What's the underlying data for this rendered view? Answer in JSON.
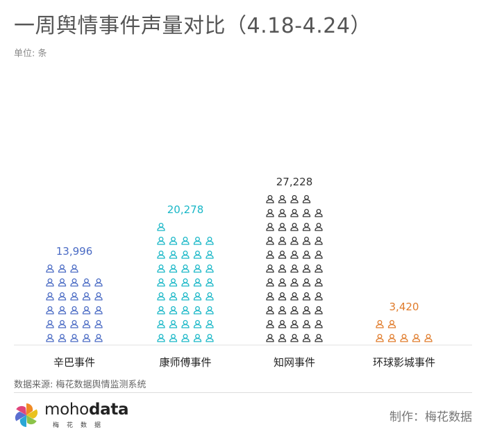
{
  "header": {
    "title": "一周舆情事件声量对比（4.18-4.24）",
    "unit": "单位: 条"
  },
  "footer": {
    "source": "数据来源: 梅花数据舆情监测系统",
    "logo_text_regular": "moho",
    "logo_text_bold": "data",
    "logo_sub": "梅花数据",
    "credit": "制作：梅花数据"
  },
  "chart_data": {
    "type": "bar",
    "subtype": "pictogram",
    "icon": "person-outline-icon",
    "title": "一周舆情事件声量对比（4.18-4.24）",
    "unit": "条",
    "categories": [
      "辛巴事件",
      "康师傅事件",
      "知网事件",
      "环球影城事件"
    ],
    "values": [
      13996,
      20278,
      27228,
      3420
    ],
    "value_labels": [
      "13,996",
      "20,278",
      "27,228",
      "3,420"
    ],
    "colors": [
      "#4a6bc4",
      "#19b7c7",
      "#333333",
      "#e07b2a"
    ],
    "grid": false,
    "legend": "none"
  }
}
